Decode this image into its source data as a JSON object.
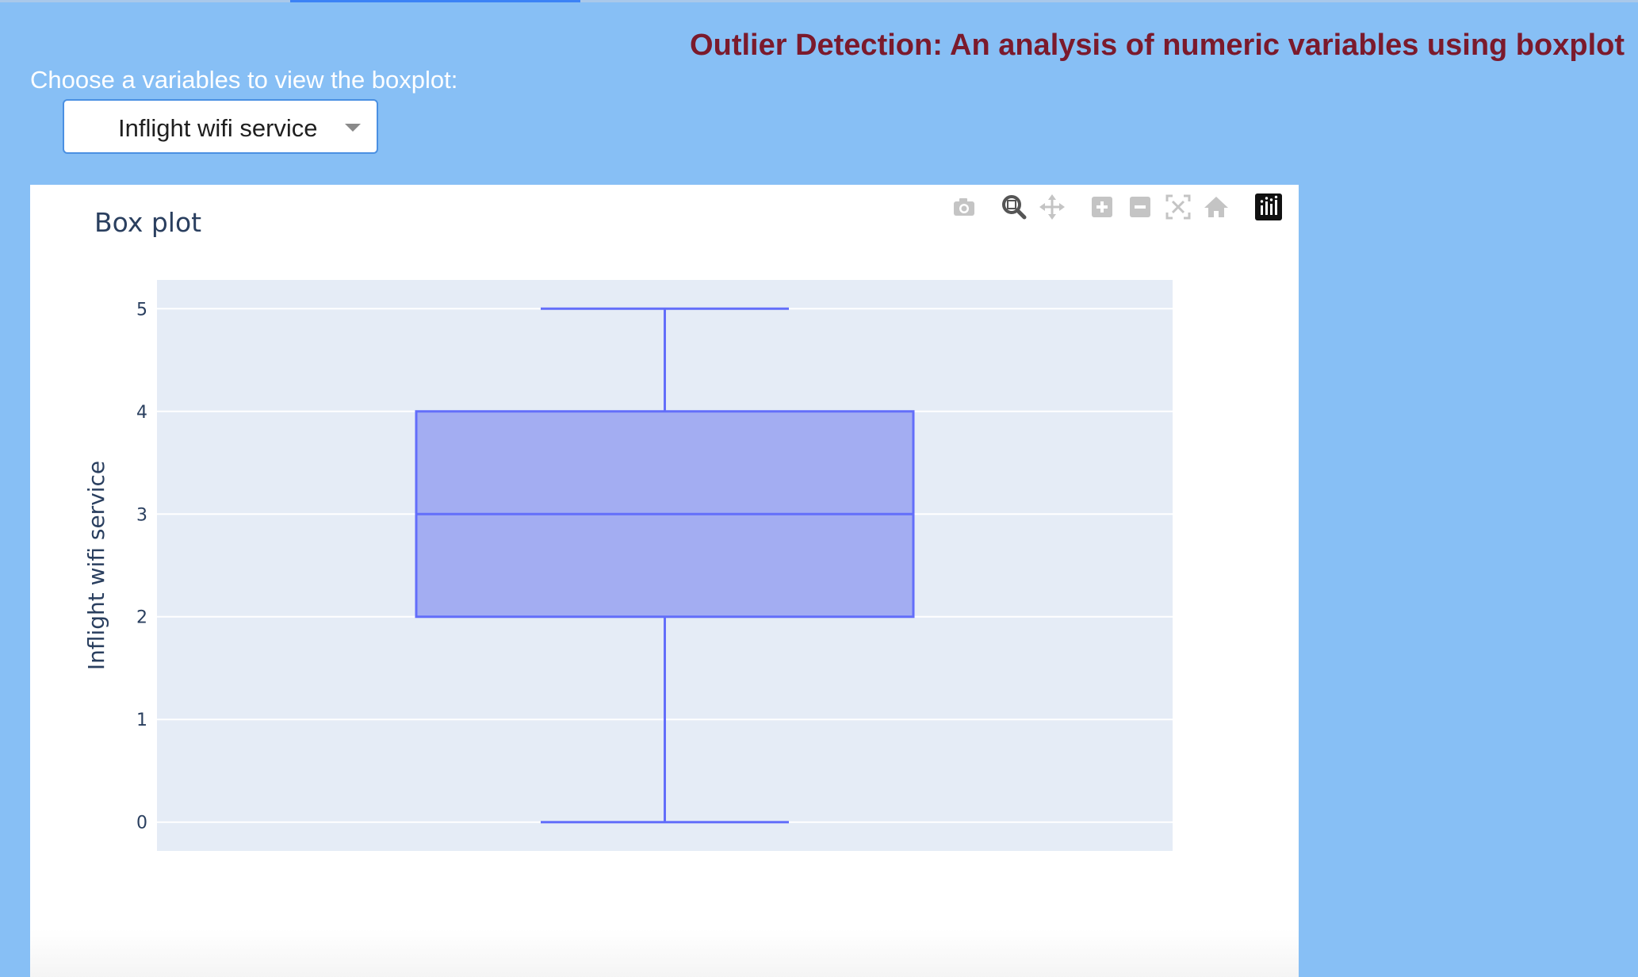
{
  "header": {
    "title": "Outlier Detection: An analysis of numeric variables using boxplot",
    "choose_label": "Choose a variables to view the boxplot:"
  },
  "dropdown": {
    "selected": "Inflight wifi service"
  },
  "modebar": {
    "icons": [
      "camera-icon",
      "zoom-icon",
      "pan-icon",
      "zoom-in-icon",
      "zoom-out-icon",
      "autoscale-icon",
      "reset-axes-icon",
      "plotly-logo-icon"
    ]
  },
  "colors": {
    "page_bg": "#87bff5",
    "title": "#7b1a2c",
    "box_fill": "#a3adf2",
    "box_line": "#636efa",
    "plot_bg": "#e5ecf6"
  },
  "chart_data": {
    "type": "box",
    "title": "Box plot",
    "ylabel": "Inflight wifi service",
    "xlabel": "",
    "ylim": [
      -0.28,
      5.28
    ],
    "yticks": [
      "0",
      "1",
      "2",
      "3",
      "4",
      "5"
    ],
    "grid": true,
    "series": [
      {
        "lowerfence": 0,
        "q1": 2,
        "median": 3,
        "q3": 4,
        "upperfence": 5
      }
    ]
  }
}
